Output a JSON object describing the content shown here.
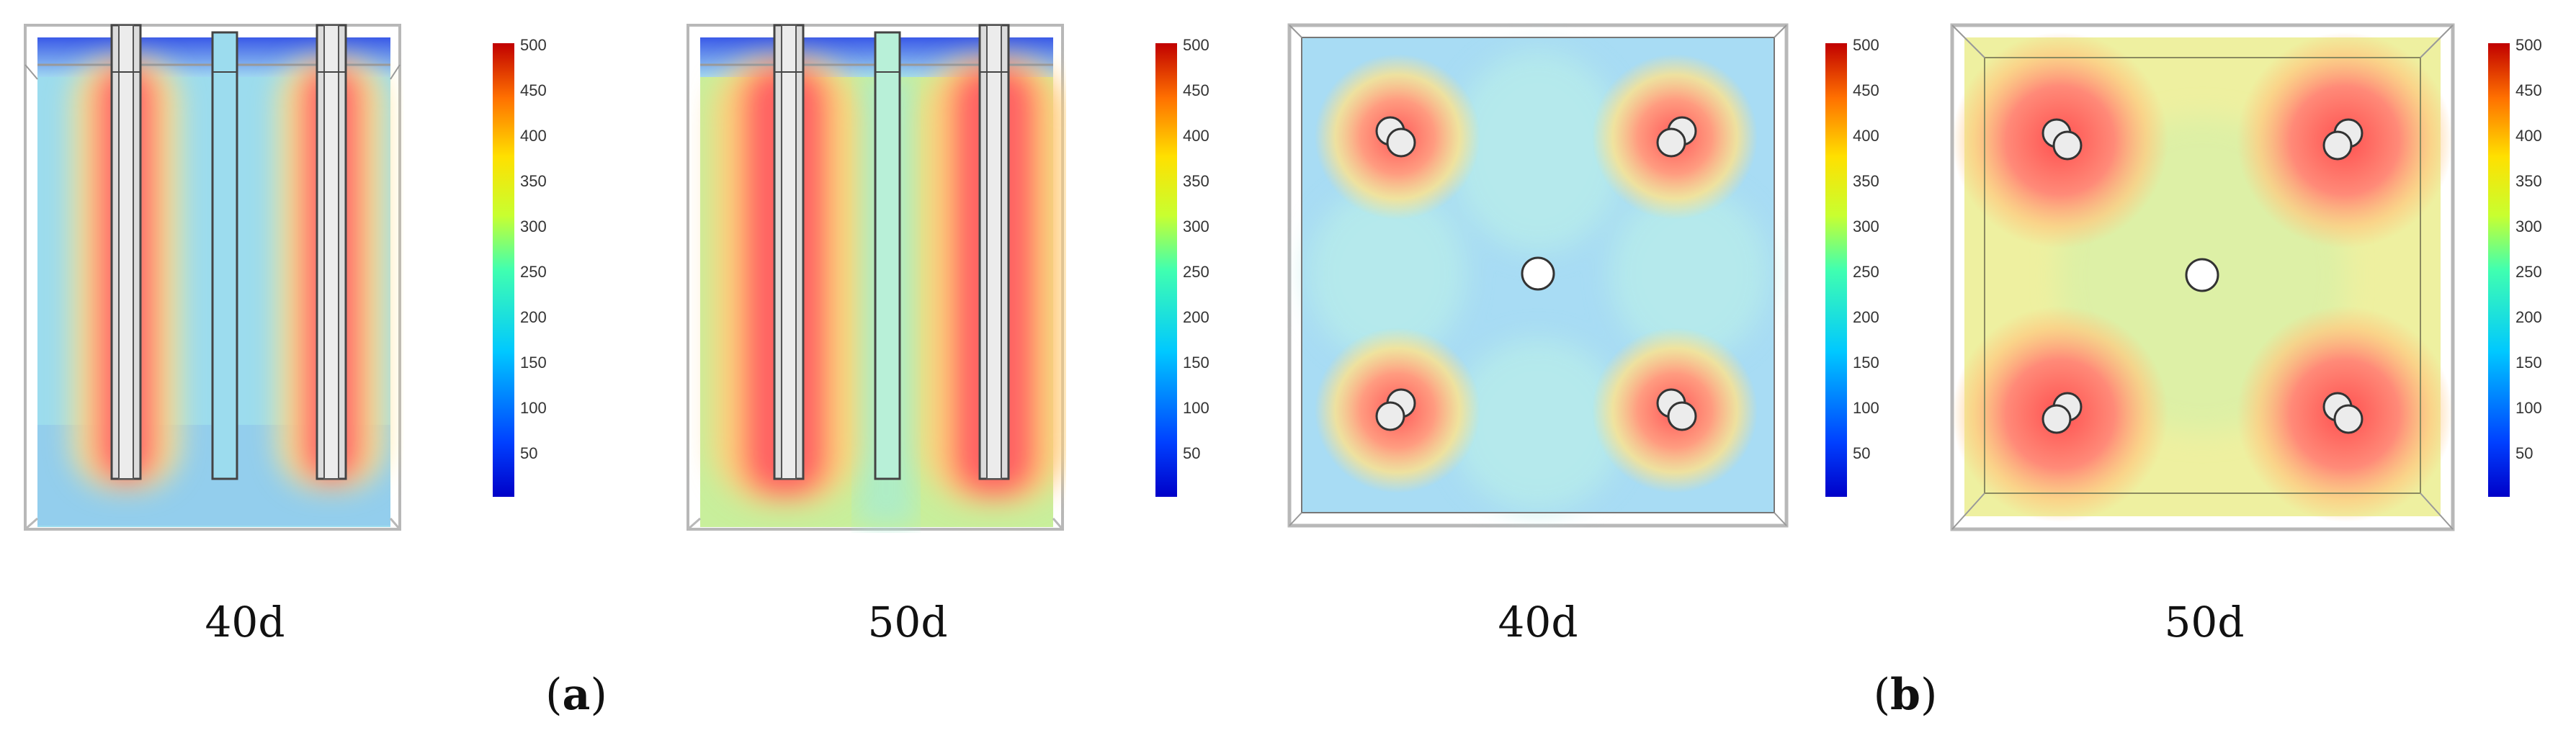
{
  "colorbar": {
    "ticks": [
      "500",
      "450",
      "400",
      "350",
      "300",
      "250",
      "200",
      "150",
      "100",
      "50"
    ]
  },
  "panels": [
    {
      "id": "a-40d",
      "caption": "40d",
      "view": "side",
      "state": "cool"
    },
    {
      "id": "a-50d",
      "caption": "50d",
      "view": "side",
      "state": "warm"
    },
    {
      "id": "b-40d",
      "caption": "40d",
      "view": "top",
      "state": "cool"
    },
    {
      "id": "b-50d",
      "caption": "50d",
      "view": "top",
      "state": "warm"
    }
  ],
  "subfigures": {
    "a": {
      "open": "(",
      "letter": "a",
      "close": ")"
    },
    "b": {
      "open": "(",
      "letter": "b",
      "close": ")"
    }
  },
  "colors": {
    "cool_background": "#8fd6f0",
    "warm_background": "#f0ec8c",
    "hot": "#f06060",
    "top_band": "#4a6cf0"
  }
}
